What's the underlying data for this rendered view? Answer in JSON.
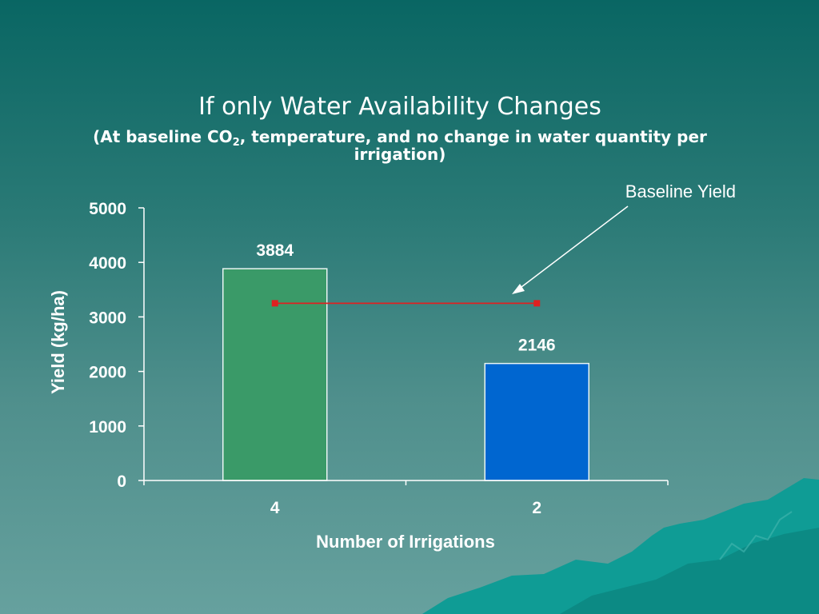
{
  "slide": {
    "title": "If only Water Availability Changes",
    "subtitle_pre": "(At baseline CO",
    "subtitle_sub": "2",
    "subtitle_post": ", temperature, and no change in water quantity per irrigation)"
  },
  "chart_data": {
    "type": "bar",
    "categories": [
      "4",
      "2"
    ],
    "values": [
      3884,
      2146
    ],
    "data_labels": [
      "3884",
      "2146"
    ],
    "bar_colors": [
      "#3a9a68",
      "#0066d0"
    ],
    "xlabel": "Number of Irrigations",
    "ylabel": "Yield (kg/ha)",
    "ylim": [
      0,
      5000
    ],
    "yticks": [
      0,
      1000,
      2000,
      3000,
      4000,
      5000
    ],
    "grid": false,
    "baseline": {
      "label": "Baseline Yield",
      "value": 3250,
      "color": "#e02020"
    }
  }
}
